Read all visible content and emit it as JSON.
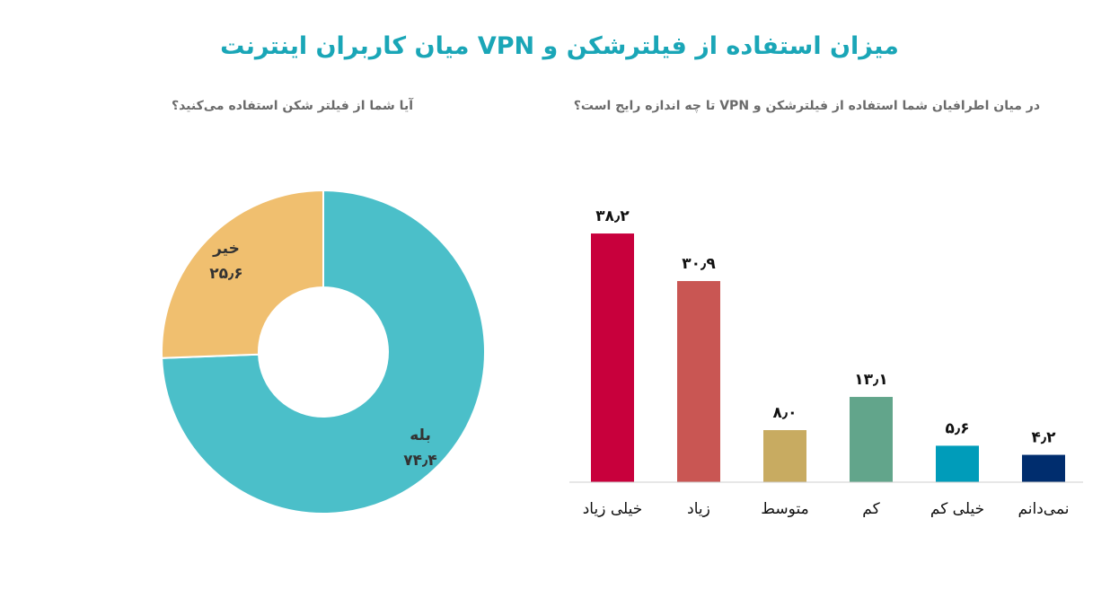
{
  "header": {
    "title": "میزان استفاده از فیلترشکن و VPN میان کاربران اینترنت"
  },
  "chart_data": [
    {
      "type": "bar",
      "title": "در میان اطرافیان شما استفاده از فیلترشکن و VPN تا چه اندازه رایج است؟",
      "categories": [
        "خیلی زیاد",
        "زیاد",
        "متوسط",
        "کم",
        "خیلی کم",
        "نمی‌دانم"
      ],
      "values": [
        38.2,
        30.9,
        8.0,
        13.1,
        5.6,
        4.2
      ],
      "value_labels": [
        "۳۸٫۲",
        "۳۰٫۹",
        "۸٫۰",
        "۱۳٫۱",
        "۵٫۶",
        "۴٫۲"
      ],
      "colors": [
        "#c8003c",
        "#c95653",
        "#c8ab61",
        "#62a58b",
        "#009cba",
        "#002d6e"
      ],
      "ylim": [
        0,
        40
      ],
      "grid": false
    },
    {
      "type": "pie",
      "variant": "donut",
      "title": "آیا شما از فیلتر شکن استفاده می‌کنید؟",
      "labels": [
        "بله",
        "خیر"
      ],
      "values": [
        74.4,
        25.6
      ],
      "value_labels": [
        "۷۴٫۴",
        "۲۵٫۶"
      ],
      "colors": [
        "#4bbfc9",
        "#f0bf6f"
      ]
    }
  ]
}
